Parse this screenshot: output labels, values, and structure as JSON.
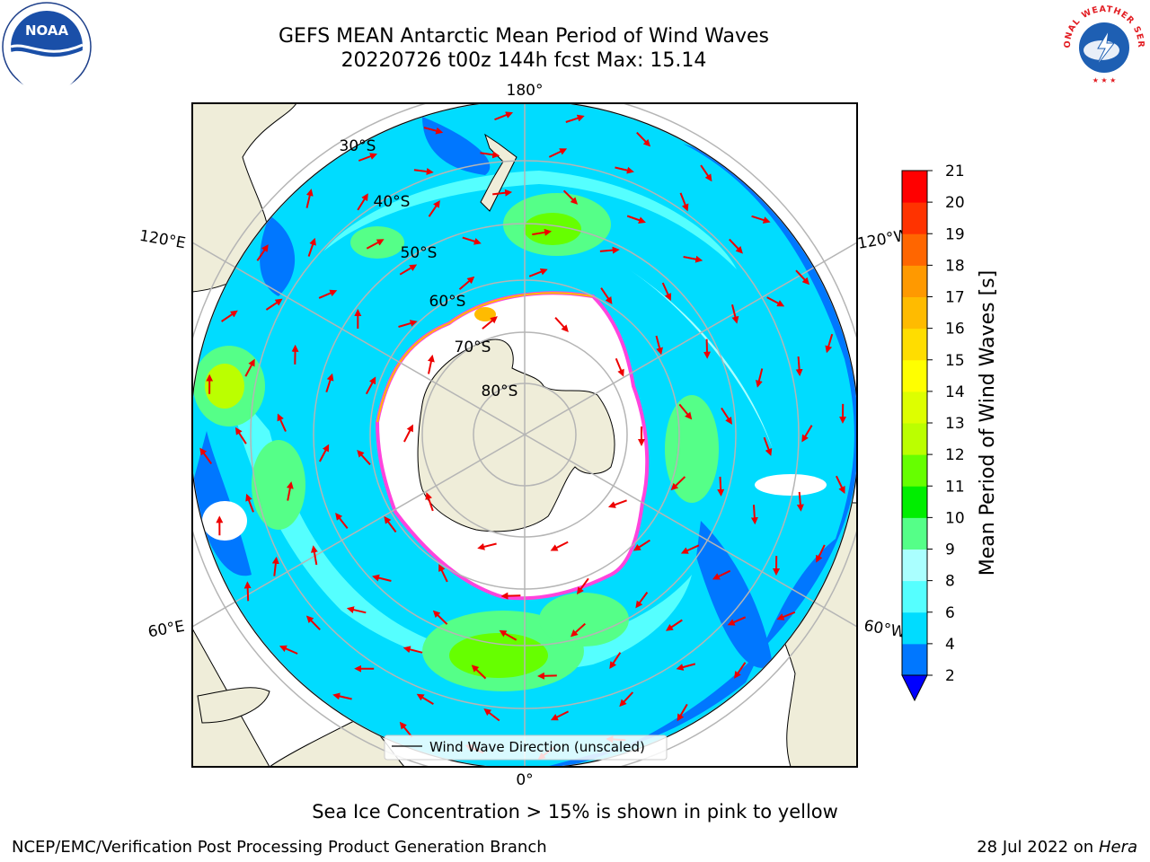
{
  "header": {
    "title_line1": "GEFS MEAN Antarctic Mean Period of Wind Waves",
    "title_line2": "20220726 t00z 144h fcst   Max: 15.14",
    "left_logo_text": "NOAA",
    "right_logo_text": "NATIONAL WEATHER SERVICE"
  },
  "map": {
    "projection": "south-polar-stereographic",
    "longitude_labels": {
      "top": "180°",
      "bottom": "0°",
      "left_upper": "120°E",
      "left_lower": "60°E",
      "right_upper": "120°W",
      "right_lower": "60°W"
    },
    "latitude_labels": [
      "30°S",
      "40°S",
      "50°S",
      "60°S",
      "70°S",
      "80°S"
    ],
    "legend_label": "Wind Wave Direction (unscaled)",
    "colors": {
      "land": "#efedd9",
      "sea_ice": "#ffffff",
      "ice_edge": "#ff44dd",
      "arrow": "#ee0000",
      "grid": "#b5b5b5"
    }
  },
  "colorbar": {
    "label": "Mean Period of Wind Waves [s]",
    "ticks": [
      "2",
      "4",
      "6",
      "8",
      "9",
      "10",
      "11",
      "12",
      "13",
      "14",
      "15",
      "16",
      "17",
      "18",
      "19",
      "20",
      "21"
    ],
    "under_color": "#0000ff",
    "colors": [
      "#0077ff",
      "#00dcff",
      "#55ffff",
      "#aaffff",
      "#55ff88",
      "#00ee00",
      "#66ff00",
      "#bbff00",
      "#ddff00",
      "#ffff00",
      "#ffdd00",
      "#ffbb00",
      "#ff9900",
      "#ff6600",
      "#ff3300",
      "#ff0000"
    ]
  },
  "footer": {
    "note": "Sea Ice Concentration > 15% is shown in pink to yellow",
    "credit": "NCEP/EMC/Verification Post Processing Product Generation Branch",
    "date_prefix": "28 Jul 2022 on ",
    "date_system": "Hera"
  }
}
